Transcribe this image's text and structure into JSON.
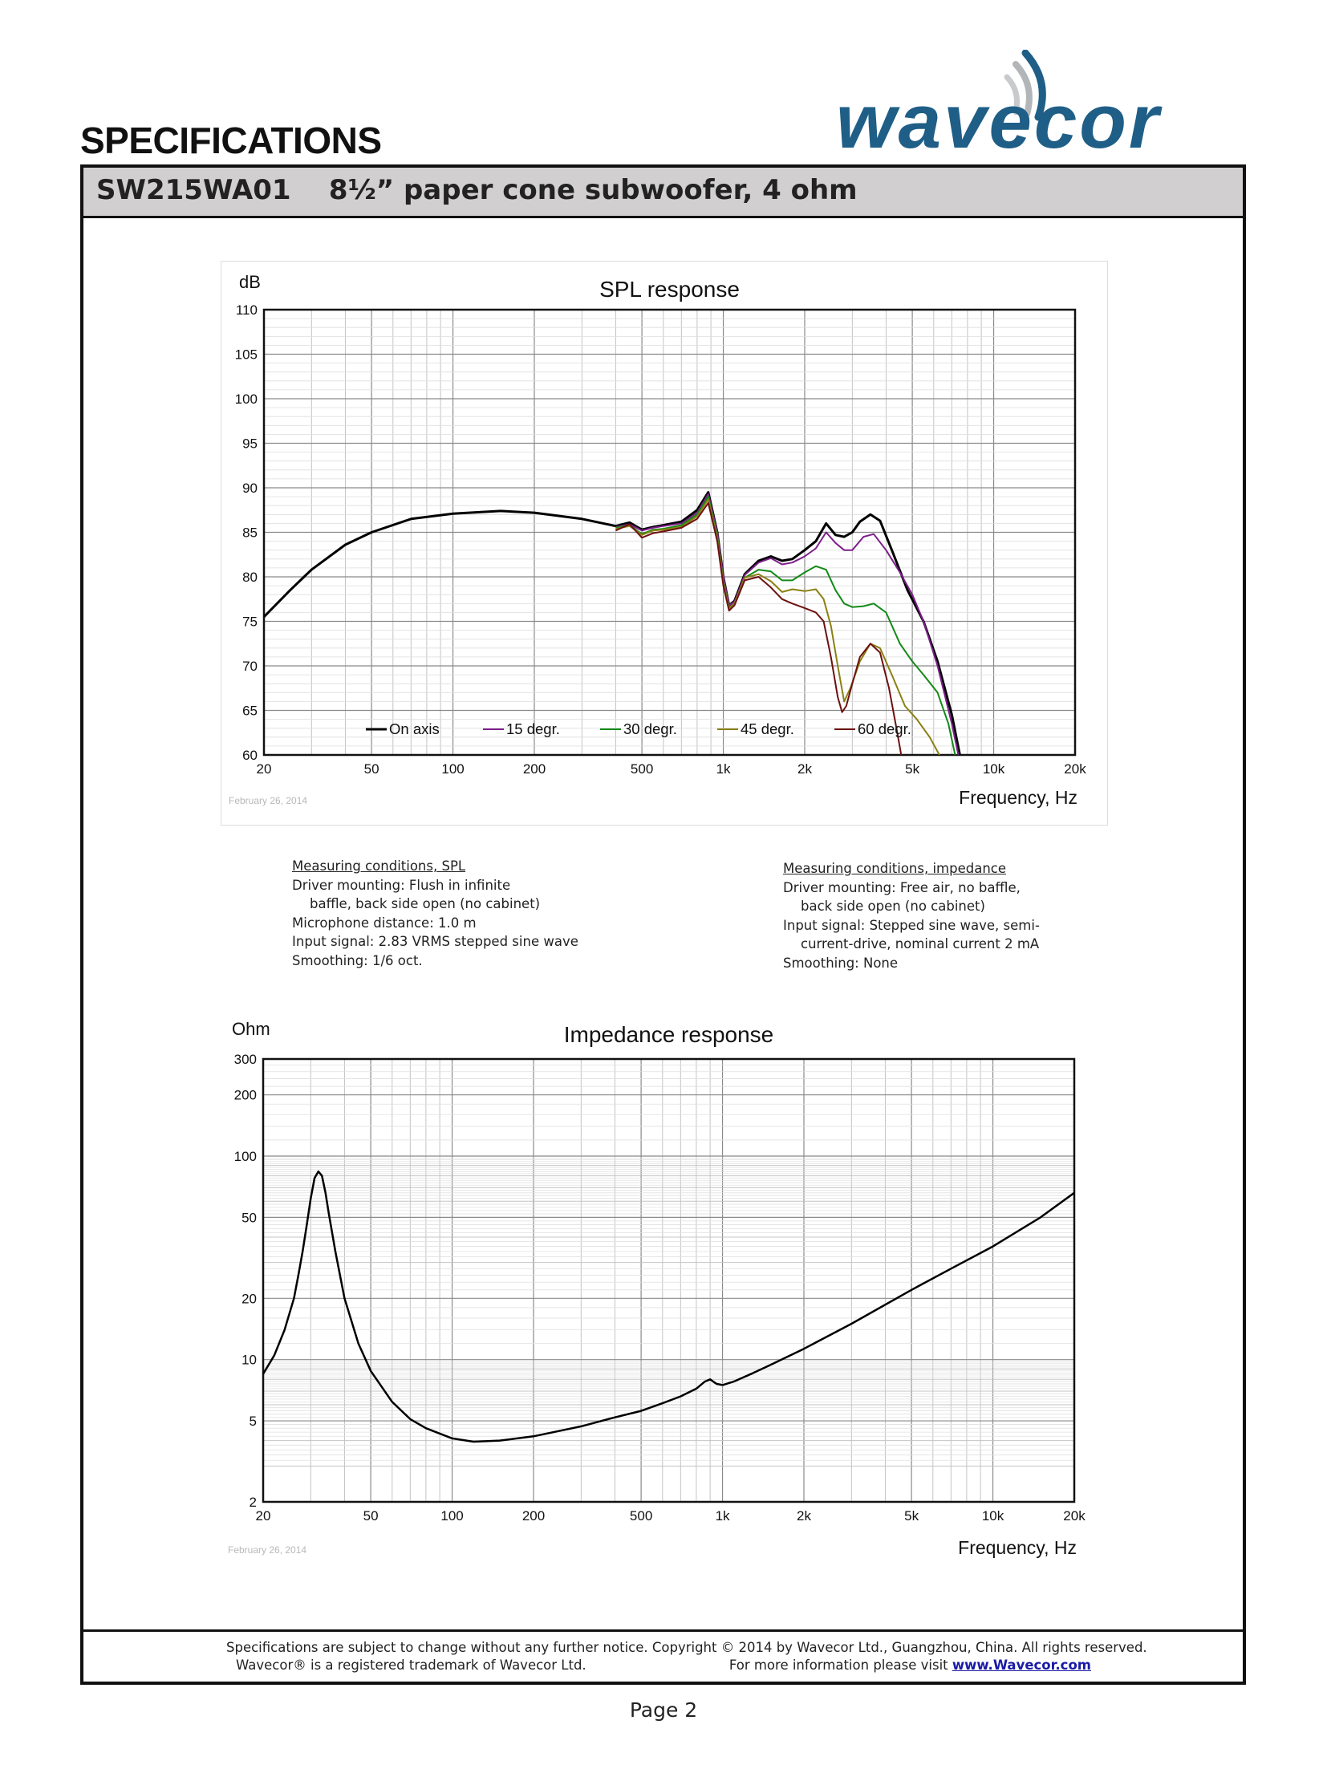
{
  "page": {
    "heading": "SPECIFICATIONS",
    "logo_text": "wavecor",
    "product_title": "SW215WA01    8½” paper cone subwoofer, 4 ohm",
    "page_number": "Page 2"
  },
  "colors": {
    "logo": "#1f5e86",
    "on_axis": "#000000",
    "deg15": "#7d1f8a",
    "deg30": "#128a16",
    "deg45": "#8a8012",
    "deg60": "#6e1010",
    "header_band": "#d1cfcf"
  },
  "chart_data": [
    {
      "type": "line",
      "title": "SPL response",
      "ylabel": "dB",
      "xlabel": "Frequency, Hz",
      "date_note": "February 26, 2014",
      "x_scale": "log",
      "xlim": [
        20,
        20000
      ],
      "ylim": [
        60,
        110
      ],
      "grid": true,
      "legend_position": "bottom",
      "x_ticks": [
        20,
        50,
        100,
        200,
        500,
        1000,
        2000,
        5000,
        10000,
        20000
      ],
      "x_tick_labels": [
        "20",
        "50",
        "100",
        "200",
        "500",
        "1k",
        "2k",
        "5k",
        "10k",
        "20k"
      ],
      "y_ticks": [
        60,
        65,
        70,
        75,
        80,
        85,
        90,
        95,
        100,
        105,
        110
      ],
      "y_tick_labels": [
        "60",
        "65",
        "70",
        "75",
        "80",
        "85",
        "90",
        "95",
        "100",
        "105",
        "110"
      ],
      "series": [
        {
          "name": "On axis",
          "color_key": "on_axis",
          "width": 3,
          "points": [
            [
              20,
              75.5
            ],
            [
              25,
              78.5
            ],
            [
              30,
              80.8
            ],
            [
              40,
              83.6
            ],
            [
              50,
              85.0
            ],
            [
              70,
              86.5
            ],
            [
              100,
              87.1
            ],
            [
              150,
              87.4
            ],
            [
              200,
              87.2
            ],
            [
              300,
              86.5
            ],
            [
              400,
              85.7
            ],
            [
              450,
              86.1
            ],
            [
              500,
              85.3
            ],
            [
              550,
              85.6
            ],
            [
              600,
              85.8
            ],
            [
              700,
              86.2
            ],
            [
              800,
              87.5
            ],
            [
              880,
              89.5
            ],
            [
              950,
              85.0
            ],
            [
              1000,
              80.0
            ],
            [
              1050,
              76.8
            ],
            [
              1100,
              77.3
            ],
            [
              1200,
              80.3
            ],
            [
              1350,
              81.8
            ],
            [
              1500,
              82.3
            ],
            [
              1650,
              81.8
            ],
            [
              1800,
              82.0
            ],
            [
              2000,
              83.0
            ],
            [
              2200,
              84.0
            ],
            [
              2400,
              86.0
            ],
            [
              2600,
              84.7
            ],
            [
              2800,
              84.5
            ],
            [
              3000,
              85.0
            ],
            [
              3200,
              86.2
            ],
            [
              3500,
              87.0
            ],
            [
              3800,
              86.3
            ],
            [
              4200,
              83.0
            ],
            [
              4800,
              78.5
            ],
            [
              5500,
              75.0
            ],
            [
              6200,
              70.5
            ],
            [
              7000,
              64.5
            ],
            [
              7500,
              60.0
            ]
          ]
        },
        {
          "name": "15 degr.",
          "color_key": "deg15",
          "width": 2,
          "points": [
            [
              400,
              85.6
            ],
            [
              450,
              85.9
            ],
            [
              500,
              85.2
            ],
            [
              550,
              85.5
            ],
            [
              600,
              85.7
            ],
            [
              700,
              86.0
            ],
            [
              800,
              87.2
            ],
            [
              880,
              89.3
            ],
            [
              950,
              85.0
            ],
            [
              1000,
              80.0
            ],
            [
              1050,
              76.8
            ],
            [
              1100,
              77.2
            ],
            [
              1200,
              80.2
            ],
            [
              1350,
              81.6
            ],
            [
              1500,
              82.1
            ],
            [
              1650,
              81.4
            ],
            [
              1800,
              81.6
            ],
            [
              2000,
              82.3
            ],
            [
              2200,
              83.2
            ],
            [
              2400,
              85.0
            ],
            [
              2600,
              83.8
            ],
            [
              2800,
              83.0
            ],
            [
              3000,
              83.0
            ],
            [
              3300,
              84.5
            ],
            [
              3600,
              84.8
            ],
            [
              4000,
              83.0
            ],
            [
              4500,
              80.5
            ],
            [
              5000,
              78.0
            ],
            [
              5500,
              75.0
            ],
            [
              6200,
              70.0
            ],
            [
              7000,
              63.5
            ],
            [
              7400,
              60.0
            ]
          ]
        },
        {
          "name": "30 degr.",
          "color_key": "deg30",
          "width": 2,
          "points": [
            [
              400,
              85.5
            ],
            [
              450,
              85.8
            ],
            [
              500,
              84.8
            ],
            [
              550,
              85.3
            ],
            [
              600,
              85.4
            ],
            [
              700,
              85.8
            ],
            [
              800,
              87.0
            ],
            [
              880,
              89.0
            ],
            [
              950,
              84.6
            ],
            [
              1000,
              79.5
            ],
            [
              1050,
              76.5
            ],
            [
              1100,
              77.0
            ],
            [
              1200,
              79.9
            ],
            [
              1350,
              80.8
            ],
            [
              1500,
              80.6
            ],
            [
              1650,
              79.6
            ],
            [
              1800,
              79.6
            ],
            [
              2000,
              80.5
            ],
            [
              2200,
              81.2
            ],
            [
              2400,
              80.8
            ],
            [
              2600,
              78.5
            ],
            [
              2800,
              77.0
            ],
            [
              3000,
              76.6
            ],
            [
              3300,
              76.7
            ],
            [
              3600,
              77.0
            ],
            [
              4000,
              76.0
            ],
            [
              4500,
              72.5
            ],
            [
              5000,
              70.5
            ],
            [
              5500,
              69.0
            ],
            [
              6200,
              67.0
            ],
            [
              6800,
              63.5
            ],
            [
              7200,
              60.0
            ]
          ]
        },
        {
          "name": "45 degr.",
          "color_key": "deg45",
          "width": 2,
          "points": [
            [
              400,
              85.4
            ],
            [
              450,
              85.7
            ],
            [
              500,
              84.7
            ],
            [
              550,
              85.2
            ],
            [
              600,
              85.3
            ],
            [
              700,
              85.6
            ],
            [
              800,
              86.8
            ],
            [
              880,
              88.7
            ],
            [
              950,
              84.3
            ],
            [
              1000,
              79.3
            ],
            [
              1050,
              76.4
            ],
            [
              1100,
              77.0
            ],
            [
              1200,
              79.9
            ],
            [
              1350,
              80.3
            ],
            [
              1500,
              79.5
            ],
            [
              1650,
              78.3
            ],
            [
              1800,
              78.6
            ],
            [
              2000,
              78.4
            ],
            [
              2200,
              78.6
            ],
            [
              2350,
              77.5
            ],
            [
              2500,
              74.5
            ],
            [
              2650,
              70.0
            ],
            [
              2800,
              66.0
            ],
            [
              2950,
              67.5
            ],
            [
              3200,
              70.5
            ],
            [
              3500,
              72.5
            ],
            [
              3800,
              72.0
            ],
            [
              4200,
              69.0
            ],
            [
              4700,
              65.5
            ],
            [
              5200,
              64.0
            ],
            [
              5800,
              62.0
            ],
            [
              6300,
              60.0
            ]
          ]
        },
        {
          "name": "60 degr.",
          "color_key": "deg60",
          "width": 2,
          "points": [
            [
              400,
              85.2
            ],
            [
              450,
              85.9
            ],
            [
              500,
              84.4
            ],
            [
              550,
              84.9
            ],
            [
              600,
              85.1
            ],
            [
              700,
              85.5
            ],
            [
              800,
              86.5
            ],
            [
              880,
              88.3
            ],
            [
              950,
              84.0
            ],
            [
              1000,
              79.0
            ],
            [
              1050,
              76.2
            ],
            [
              1100,
              76.8
            ],
            [
              1200,
              79.6
            ],
            [
              1350,
              80.0
            ],
            [
              1500,
              78.8
            ],
            [
              1650,
              77.5
            ],
            [
              1800,
              77.0
            ],
            [
              2000,
              76.5
            ],
            [
              2200,
              76.0
            ],
            [
              2350,
              75.0
            ],
            [
              2500,
              71.0
            ],
            [
              2650,
              66.5
            ],
            [
              2750,
              64.8
            ],
            [
              2850,
              65.5
            ],
            [
              3000,
              68.0
            ],
            [
              3200,
              71.0
            ],
            [
              3500,
              72.5
            ],
            [
              3800,
              71.5
            ],
            [
              4100,
              67.5
            ],
            [
              4400,
              62.5
            ],
            [
              4550,
              60.0
            ]
          ]
        }
      ]
    },
    {
      "type": "line",
      "title": "Impedance response",
      "ylabel": "Ohm",
      "xlabel": "Frequency, Hz",
      "date_note": "February 26, 2014",
      "x_scale": "log",
      "y_scale": "log",
      "xlim": [
        20,
        20000
      ],
      "ylim": [
        2,
        300
      ],
      "grid": true,
      "x_ticks": [
        20,
        50,
        100,
        200,
        500,
        1000,
        2000,
        5000,
        10000,
        20000
      ],
      "x_tick_labels": [
        "20",
        "50",
        "100",
        "200",
        "500",
        "1k",
        "2k",
        "5k",
        "10k",
        "20k"
      ],
      "y_ticks": [
        2,
        5,
        10,
        20,
        50,
        100,
        200,
        300
      ],
      "y_tick_labels": [
        "2",
        "5",
        "10",
        "20",
        "50",
        "100",
        "200",
        "300"
      ],
      "series": [
        {
          "name": "",
          "color_key": "on_axis",
          "width": 2.5,
          "points": [
            [
              20,
              8.5
            ],
            [
              22,
              10.5
            ],
            [
              24,
              14.0
            ],
            [
              26,
              20.0
            ],
            [
              27,
              26.0
            ],
            [
              28,
              34.0
            ],
            [
              29,
              46.0
            ],
            [
              30,
              62.0
            ],
            [
              31,
              78.0
            ],
            [
              32,
              84.0
            ],
            [
              33,
              80.0
            ],
            [
              34,
              66.0
            ],
            [
              35,
              52.0
            ],
            [
              37,
              34.0
            ],
            [
              40,
              20.0
            ],
            [
              45,
              12.0
            ],
            [
              50,
              8.8
            ],
            [
              60,
              6.2
            ],
            [
              70,
              5.1
            ],
            [
              80,
              4.6
            ],
            [
              100,
              4.1
            ],
            [
              120,
              3.95
            ],
            [
              150,
              4.0
            ],
            [
              200,
              4.2
            ],
            [
              300,
              4.7
            ],
            [
              400,
              5.2
            ],
            [
              500,
              5.6
            ],
            [
              600,
              6.1
            ],
            [
              700,
              6.6
            ],
            [
              800,
              7.2
            ],
            [
              860,
              7.8
            ],
            [
              900,
              8.0
            ],
            [
              950,
              7.6
            ],
            [
              1000,
              7.5
            ],
            [
              1100,
              7.8
            ],
            [
              1300,
              8.6
            ],
            [
              1500,
              9.4
            ],
            [
              2000,
              11.3
            ],
            [
              3000,
              15.0
            ],
            [
              5000,
              22.0
            ],
            [
              7000,
              28.0
            ],
            [
              10000,
              36.0
            ],
            [
              15000,
              50.0
            ],
            [
              20000,
              66.0
            ]
          ]
        }
      ]
    }
  ],
  "conditions": {
    "spl": {
      "title": "Measuring conditions, SPL",
      "line1": "Driver mounting: Flush in infinite",
      "line2": "baffle, back side open  (no cabinet)",
      "line3": "Microphone distance: 1.0 m",
      "line4": "Input signal: 2.83 VRMS stepped sine wave",
      "line5": "Smoothing: 1/6 oct."
    },
    "impedance": {
      "title": "Measuring conditions, impedance",
      "line1": "Driver mounting: Free air, no baffle,",
      "line2": "back side open (no cabinet)",
      "line3": "Input signal: Stepped sine wave, semi-",
      "line4": "current-drive, nominal current 2 mA",
      "line5": "Smoothing: None"
    }
  },
  "footer": {
    "line1": "Specifications are subject to change without any further notice.  Copyright © 2014 by Wavecor Ltd., Guangzhou, China. All rights reserved.",
    "trademark": "Wavecor® is a registered trademark of Wavecor Ltd.",
    "more_info": "For more information please visit ",
    "link_text": "www.Wavecor.com"
  }
}
